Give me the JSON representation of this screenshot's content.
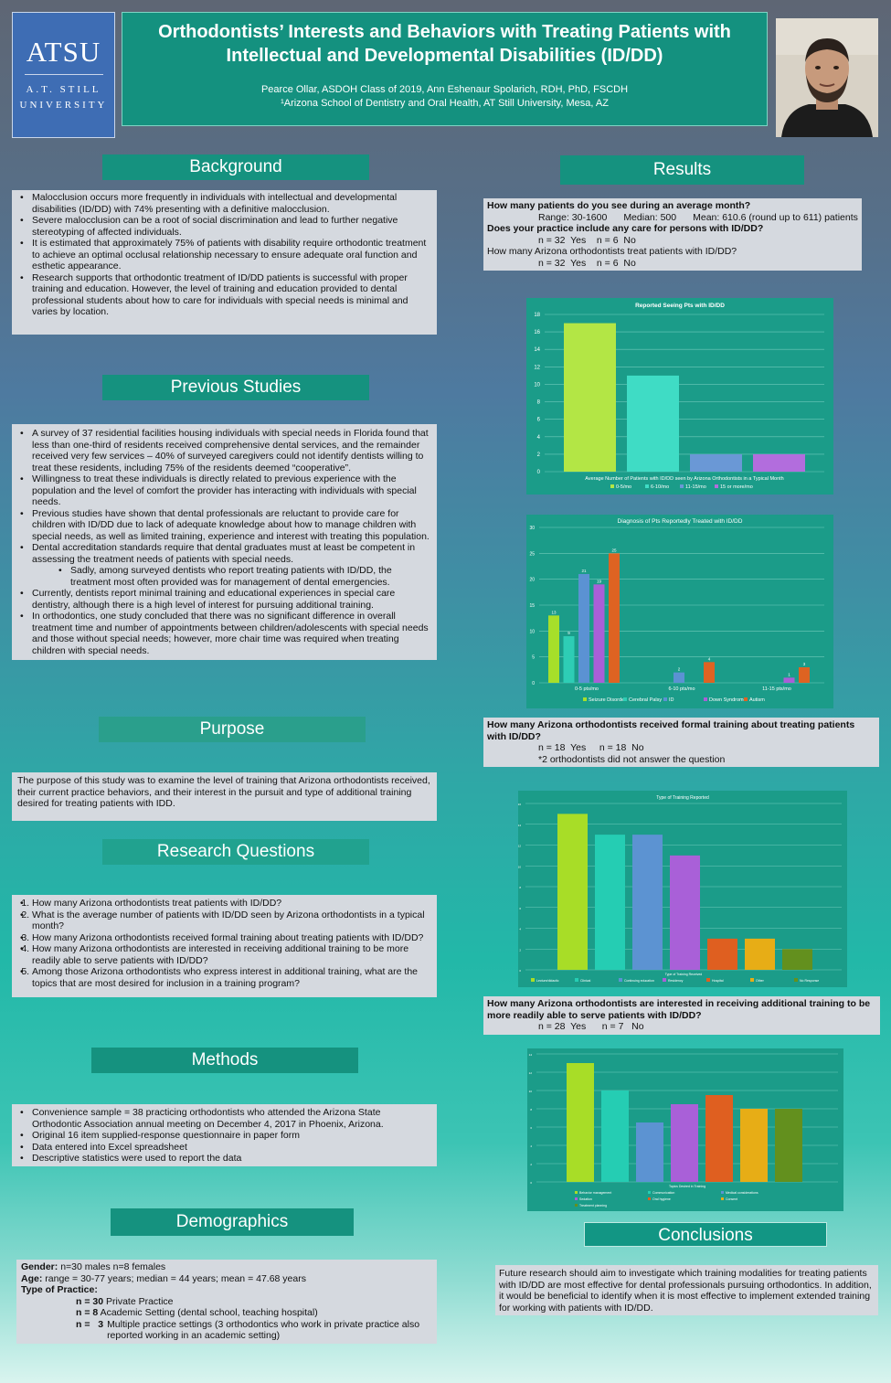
{
  "header": {
    "logo_main": "ATSU",
    "logo_sub1": "A.T. STILL",
    "logo_sub2": "UNIVERSITY",
    "title": "Orthodontists’ Interests and Behaviors with Treating Patients with Intellectual and Developmental Disabilities (ID/DD)",
    "authors": "Pearce Ollar, ASDOH Class of 2019, Ann Eshenaur Spolarich, RDH, PhD, FSCDH",
    "affiliation": "¹Arizona School of Dentistry and Oral Health, AT Still University, Mesa, AZ"
  },
  "background": {
    "heading": "Background",
    "bullets": [
      "Malocclusion occurs more frequently in individuals with intellectual and developmental disabilities (ID/DD) with 74% presenting with a definitive malocclusion.",
      "Severe malocclusion can be a root of social discrimination and lead to further negative stereotyping of affected individuals.",
      "It is estimated that approximately 75% of patients with disability require orthodontic treatment to achieve an optimal occlusal relationship necessary to ensure adequate oral function and esthetic appearance.",
      "Research supports that orthodontic treatment of ID/DD patients is successful with proper training and education.   However, the level of training and education provided to dental professional students about how to care for individuals with special needs is minimal and varies by location."
    ]
  },
  "previous": {
    "heading": "Previous Studies",
    "bullets": [
      "A survey of 37 residential facilities housing individuals with special needs in Florida found that less than one-third of residents received comprehensive dental services, and the remainder received very few services – 40% of surveyed caregivers could not identify dentists willing to treat these residents, including 75% of the residents deemed “cooperative”.",
      "Willingness to treat these individuals is directly related to previous experience with the population and the level of comfort the provider has interacting with individuals with special needs.",
      "Previous studies have shown that dental professionals are reluctant to provide care for children with ID/DD due to lack of adequate knowledge about how to manage children with special needs, as well as limited training, experience and interest with treating this population.",
      "Dental accreditation standards require that dental graduates must at least be competent in assessing the treatment needs of patients with special needs.",
      "Sadly, among surveyed dentists who report treating patients with ID/DD, the treatment most often provided was for management of dental emergencies.",
      "Currently, dentists report minimal training and educational experiences in special care dentistry, although there is a high level of interest for pursuing additional training.",
      "In orthodontics, one study concluded that there was no significant difference in overall treatment time and number of appointments between children/adolescents with special needs and those without special needs; however, more chair time was required when treating children with special needs."
    ]
  },
  "purpose": {
    "heading": "Purpose",
    "text": "The purpose of this study was to examine the level of training that Arizona orthodontists received, their current practice behaviors, and their interest in the pursuit and type of additional training desired for treating patients with IDD."
  },
  "research": {
    "heading": "Research Questions",
    "items": [
      "How many Arizona orthodontists treat patients with ID/DD?",
      "What is the average number of patients with ID/DD seen by Arizona orthodontists in a typical month?",
      "How many Arizona orthodontists received formal training about treating patients with ID/DD?",
      "How many Arizona orthodontists are interested in receiving additional training to be more readily able to serve patients with ID/DD?",
      "Among those Arizona orthodontists who express interest in additional training, what are the topics that are most desired for inclusion in a training program?"
    ]
  },
  "methods": {
    "heading": "Methods",
    "bullets": [
      "Convenience sample  = 38 practicing orthodontists who attended the Arizona State Orthodontic Association annual meeting on December 4, 2017 in Phoenix, Arizona.",
      "Original 16 item supplied-response questionnaire in paper form",
      "Data entered into Excel spreadsheet",
      "Descriptive statistics were used to report the data"
    ]
  },
  "demographics": {
    "heading": "Demographics",
    "gender_label": "Gender:",
    "gender": "n=30 males    n=8 females",
    "age_label": "Age:",
    "age": "range = 30-77 years; median = 44 years; mean = 47.68 years",
    "practice_label": "Type of Practice:",
    "p1_n": "n = 30",
    "p1": "Private Practice",
    "p2_n": "n =   8",
    "p2": "Academic Setting (dental school, teaching hospital)",
    "p3_n": "n =   3",
    "p3": "Multiple practice settings (3 orthodontics who work in private practice also reported working in an academic setting)"
  },
  "results": {
    "heading": "Results",
    "q1": "How many patients do you see during an average month?",
    "q1_range": "Range: 30-1600",
    "q1_median": "Median: 500",
    "q1_mean": "Mean: 610.6 (round up to 611) patients",
    "q2": "Does your practice include any care for persons with ID/DD?",
    "q2_ans": "n = 32  Yes    n = 6  No",
    "q3": "How many Arizona orthodontists treat patients with ID/DD?",
    "q3_ans": "n = 32  Yes    n = 6  No",
    "q4": "How many Arizona orthodontists received formal training about treating patients with ID/DD?",
    "q4_ans": "n = 18  Yes     n = 18  No",
    "q4_note": "*2 orthodontists did not answer the question",
    "q5": "How many Arizona orthodontists are interested in receiving additional training to be more readily able to serve patients with ID/DD?",
    "q5_ans": "n = 28  Yes      n = 7   No"
  },
  "conclusions": {
    "heading": "Conclusions",
    "text": "Future research should aim to investigate which training modalities for treating patients with ID/DD are most effective for dental professionals pursuing orthodontics. In addition, it would be beneficial to identify when it is most effective to implement extended training for working with patients with ID/DD."
  },
  "chart_data": [
    {
      "type": "bar",
      "title": "Reported Seeing Pts with ID/DD",
      "xlabel": "Average Number of Patients with ID/DD seen by Arizona Orthodontists in a Typical Month",
      "series": [
        {
          "name": "0-5/mo",
          "color": "#b3e645",
          "values": [
            17
          ]
        },
        {
          "name": "6-10/mo",
          "color": "#3fdcc5",
          "values": [
            11
          ]
        },
        {
          "name": "11-15/mo",
          "color": "#6a98d6",
          "values": [
            2
          ]
        },
        {
          "name": "15 or more/mo",
          "color": "#b26ddd",
          "values": [
            2
          ]
        }
      ],
      "ylim": [
        0,
        18
      ],
      "yticks": [
        0,
        2,
        4,
        6,
        8,
        10,
        12,
        14,
        16,
        18
      ],
      "legend": "bottom"
    },
    {
      "type": "bar",
      "title": "Diagnosis of Pts Reportedly Treated with ID/DD",
      "categories": [
        "0-5 pts/mo",
        "6-10 pts/mo",
        "11-15 pts/mo"
      ],
      "series": [
        {
          "name": "Seizure Disorder",
          "color": "#a6df2a",
          "values": [
            13,
            0,
            0
          ]
        },
        {
          "name": "Cerebral Palsy",
          "color": "#2ecdb5",
          "values": [
            9,
            0,
            0
          ]
        },
        {
          "name": "ID",
          "color": "#5b92d3",
          "values": [
            21,
            2,
            0
          ]
        },
        {
          "name": "Down Syndrome",
          "color": "#a95fd8",
          "values": [
            19,
            0,
            1
          ]
        },
        {
          "name": "Autism",
          "color": "#de6322",
          "values": [
            25,
            4,
            3
          ]
        }
      ],
      "data_labels": [
        "13",
        "9",
        "21",
        "19",
        "25",
        "2",
        "4",
        "1",
        "3"
      ],
      "ylim": [
        0,
        30
      ],
      "yticks": [
        0,
        5,
        10,
        15,
        20,
        25,
        30
      ],
      "legend": "bottom"
    },
    {
      "type": "bar",
      "title": "Type of Training Reported",
      "xlabel": "Type of Training Received",
      "series": [
        {
          "name": "Lecture/didactic",
          "color": "#a8dd27",
          "values": [
            15
          ]
        },
        {
          "name": "Clinical",
          "color": "#25cdb3",
          "values": [
            13
          ]
        },
        {
          "name": "Continuing education",
          "color": "#5c93d2",
          "values": [
            13
          ]
        },
        {
          "name": "Residency",
          "color": "#a960d8",
          "values": [
            11
          ]
        },
        {
          "name": "Hospital",
          "color": "#df5f20",
          "values": [
            3
          ]
        },
        {
          "name": "Other",
          "color": "#e7ad16",
          "values": [
            3
          ]
        },
        {
          "name": "No Response",
          "color": "#63901e",
          "values": [
            2
          ]
        }
      ],
      "ylim": [
        0,
        16
      ],
      "yticks": [
        0,
        2,
        4,
        6,
        8,
        10,
        12,
        14,
        16
      ],
      "legend": "bottom"
    },
    {
      "type": "bar",
      "title": "",
      "xlabel": "Topics Desired in Training",
      "series": [
        {
          "name": "Behavior management",
          "color": "#a8dd27",
          "values": [
            13
          ]
        },
        {
          "name": "Communication",
          "color": "#25cdb3",
          "values": [
            10
          ]
        },
        {
          "name": "Medical considerations",
          "color": "#5c93d2",
          "values": [
            6.5
          ]
        },
        {
          "name": "Sedation",
          "color": "#a960d8",
          "values": [
            8.5
          ]
        },
        {
          "name": "Oral hygiene",
          "color": "#df5f20",
          "values": [
            9.5
          ]
        },
        {
          "name": "Consent",
          "color": "#e7ad16",
          "values": [
            8
          ]
        },
        {
          "name": "Treatment planning",
          "color": "#63901e",
          "values": [
            8
          ]
        }
      ],
      "ylim": [
        0,
        14
      ],
      "yticks": [
        0,
        2,
        4,
        6,
        8,
        10,
        12,
        14
      ],
      "legend": "bottom"
    }
  ]
}
